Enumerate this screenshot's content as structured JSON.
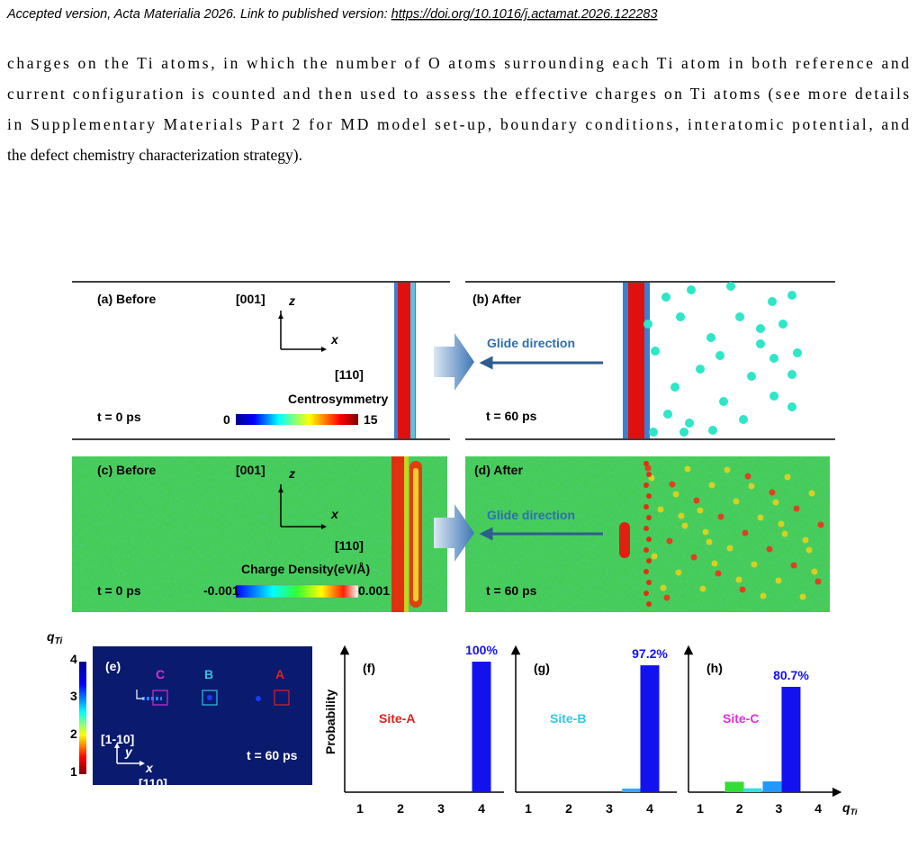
{
  "header": {
    "text": "Accepted version, Acta Materialia 2026. Link to published version: ",
    "link": "https://doi.org/10.1016/j.actamat.2026.122283"
  },
  "paragraph": [
    "charges on the Ti atoms, in which the number of O atoms surrounding each Ti atom in both reference and",
    "current configuration is counted and then used to assess the effective charges on Ti atoms (see more details",
    "in Supplementary Materials Part 2 for MD model set-up, boundary conditions, interatomic potential, and",
    "the defect chemistry characterization strategy)."
  ],
  "figure": {
    "a": {
      "label": "(a) Before",
      "dir_z": "[001]",
      "z": "z",
      "x": "x",
      "dir_x": "[110]",
      "colorbar_title": "Centrosymmetry",
      "colorbar_min": "0",
      "colorbar_max": "15",
      "time": "t = 0 ps"
    },
    "b": {
      "label": "(b) After",
      "arrow": "Glide direction",
      "time": "t = 60 ps"
    },
    "c": {
      "label": "(c) Before",
      "dir_z": "[001]",
      "z": "z",
      "x": "x",
      "dir_x": "[110]",
      "colorbar_title": "Charge Density(eV/Å)",
      "colorbar_min": "-0.001",
      "colorbar_max": "0.001",
      "time": "t = 0 ps"
    },
    "d": {
      "label": "(d) After",
      "arrow": "Glide direction",
      "time": "t = 60 ps"
    },
    "e": {
      "label": "(e)",
      "colorbar_symbol": "q",
      "colorbar_sub": "Ti",
      "colorbar_ticks": [
        "4",
        "3",
        "2",
        "1"
      ],
      "sites": [
        "C",
        "B",
        "A"
      ],
      "dir_y": "[1-10]",
      "y": "y",
      "x": "x",
      "dir_x": "[110]",
      "time": "t = 60 ps"
    },
    "ylabel": "Probability",
    "xlabel_symbol": "q",
    "xlabel_sub": "Ti",
    "panels": [
      {
        "label": "(f)",
        "site": "Site-A",
        "xticks": [
          1,
          2,
          3,
          4
        ],
        "ylim": [
          0,
          100
        ],
        "bars": [
          {
            "x": 4,
            "value": 100,
            "color": "#1212ee"
          }
        ],
        "value_label": "100%"
      },
      {
        "label": "(g)",
        "site": "Site-B",
        "xticks": [
          1,
          2,
          3,
          4
        ],
        "ylim": [
          0,
          100
        ],
        "bars": [
          {
            "x": 3.55,
            "value": 2.8,
            "color": "#33aaff"
          },
          {
            "x": 4,
            "value": 97.2,
            "color": "#1212ee"
          }
        ],
        "value_label": "97.2%"
      },
      {
        "label": "(h)",
        "site": "Site-C",
        "xticks": [
          1,
          2,
          3,
          4
        ],
        "ylim": [
          0,
          100
        ],
        "bars": [
          {
            "x": 1.87,
            "value": 8,
            "color": "#33dd33"
          },
          {
            "x": 2.33,
            "value": 3,
            "color": "#33e0e0"
          },
          {
            "x": 2.83,
            "value": 8.3,
            "color": "#2299ff"
          },
          {
            "x": 3.31,
            "value": 80.7,
            "color": "#1212ee"
          }
        ],
        "value_label": "80.7%"
      }
    ]
  }
}
